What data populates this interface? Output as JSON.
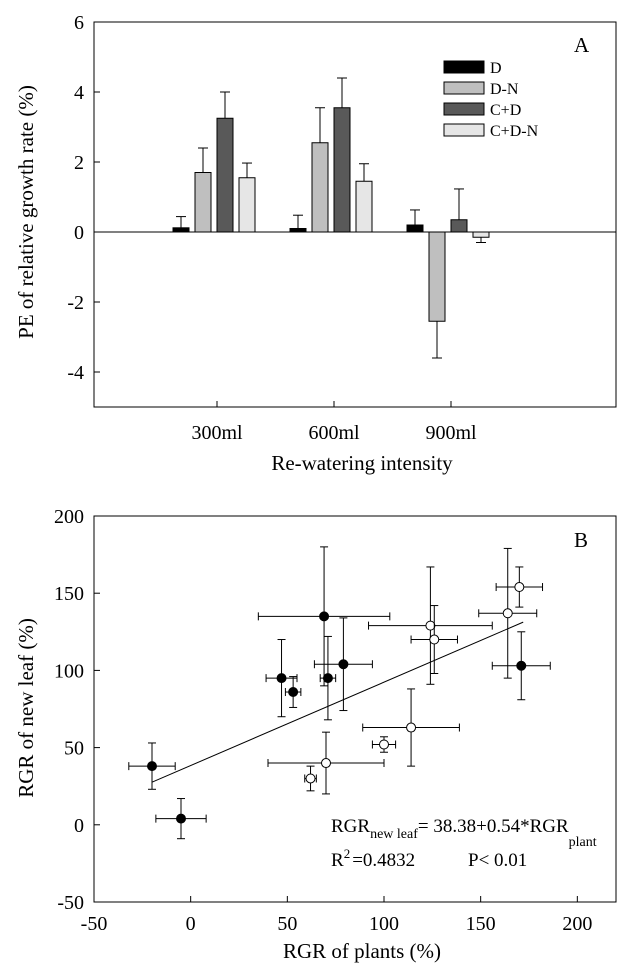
{
  "chart_data": [
    {
      "panel_label": "A",
      "type": "bar",
      "xlabel": "Re-watering intensity",
      "ylabel": "PE of relative growth rate (%)",
      "categories": [
        "300ml",
        "600ml",
        "900ml"
      ],
      "ylim": [
        -5,
        6
      ],
      "yticks": [
        -4,
        -2,
        0,
        2,
        4,
        6
      ],
      "ytick_labels": [
        "-4",
        "-2",
        "0",
        "2",
        "4",
        "6"
      ],
      "legend_position": "top-right",
      "series": [
        {
          "name": "D",
          "color": "#000000",
          "values": [
            0.12,
            0.1,
            0.2
          ],
          "errors": [
            0.32,
            0.38,
            0.43
          ]
        },
        {
          "name": "D-N",
          "color": "#bfbfbf",
          "values": [
            1.7,
            2.55,
            -2.55
          ],
          "errors": [
            0.7,
            1.0,
            1.05
          ]
        },
        {
          "name": "C+D",
          "color": "#595959",
          "values": [
            3.25,
            3.55,
            0.35
          ],
          "errors": [
            0.75,
            0.85,
            0.88
          ]
        },
        {
          "name": "C+D-N",
          "color": "#e6e6e6",
          "values": [
            1.55,
            1.45,
            -0.15
          ],
          "errors": [
            0.42,
            0.5,
            0.15
          ]
        }
      ]
    },
    {
      "panel_label": "B",
      "type": "scatter",
      "xlabel": "RGR of plants (%)",
      "ylabel": "RGR of new leaf (%)",
      "xlim": [
        -50,
        220
      ],
      "ylim": [
        -50,
        200
      ],
      "xticks": [
        -50,
        0,
        50,
        100,
        150,
        200
      ],
      "xtick_labels": [
        "-50",
        "0",
        "50",
        "100",
        "150",
        "200"
      ],
      "yticks": [
        -50,
        0,
        50,
        100,
        150,
        200
      ],
      "ytick_labels": [
        "-50",
        "0",
        "50",
        "100",
        "150",
        "200"
      ],
      "series": [
        {
          "marker": "filled",
          "points": [
            {
              "x": -20,
              "y": 38,
              "xerr": 12,
              "yerr": 15
            },
            {
              "x": -5,
              "y": 4,
              "xerr": 13,
              "yerr": 13
            },
            {
              "x": 47,
              "y": 95,
              "xerr": 8,
              "yerr": 25
            },
            {
              "x": 53,
              "y": 86,
              "xerr": 4,
              "yerr": 10
            },
            {
              "x": 69,
              "y": 135,
              "xerr": 34,
              "yerr": 45
            },
            {
              "x": 71,
              "y": 95,
              "xerr": 4,
              "yerr": 27
            },
            {
              "x": 79,
              "y": 104,
              "xerr": 15,
              "yerr": 30
            },
            {
              "x": 171,
              "y": 103,
              "xerr": 15,
              "yerr": 22
            }
          ]
        },
        {
          "marker": "open",
          "points": [
            {
              "x": 62,
              "y": 30,
              "xerr": 3,
              "yerr": 8
            },
            {
              "x": 70,
              "y": 40,
              "xerr": 30,
              "yerr": 20
            },
            {
              "x": 100,
              "y": 52,
              "xerr": 6,
              "yerr": 5
            },
            {
              "x": 114,
              "y": 63,
              "xerr": 25,
              "yerr": 25
            },
            {
              "x": 124,
              "y": 129,
              "xerr": 32,
              "yerr": 38
            },
            {
              "x": 126,
              "y": 120,
              "xerr": 12,
              "yerr": 22
            },
            {
              "x": 164,
              "y": 137,
              "xerr": 15,
              "yerr": 42
            },
            {
              "x": 170,
              "y": 154,
              "xerr": 12,
              "yerr": 13
            }
          ]
        }
      ],
      "regression": {
        "intercept": 38.38,
        "slope": 0.54,
        "x_range": [
          -20,
          172
        ]
      },
      "annotation": {
        "eq_main": "RGR",
        "eq_sub1": "new leaf",
        "eq_mid": "= 38.38+0.54*RGR",
        "eq_sub2": "plant",
        "r2_main": "R",
        "r2_sup": "2",
        "r2_rest": "=0.4832",
        "p_text": "P< 0.01"
      }
    }
  ]
}
